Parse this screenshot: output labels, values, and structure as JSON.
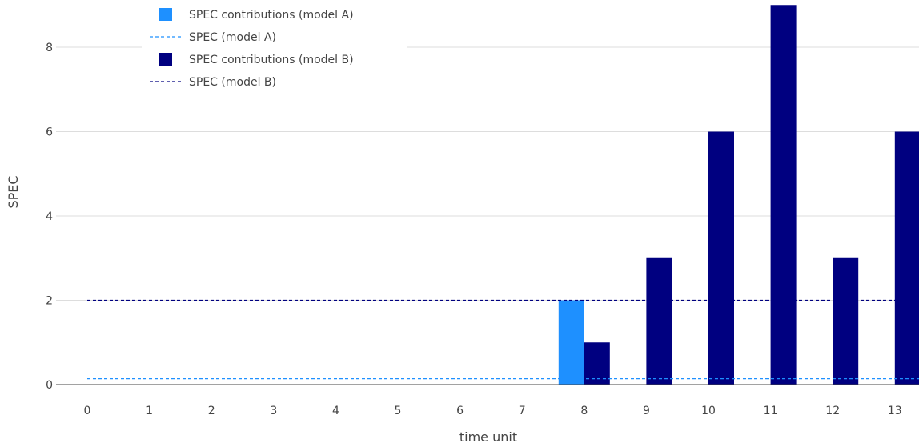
{
  "chart_data": {
    "type": "bar",
    "x": [
      0,
      1,
      2,
      3,
      4,
      5,
      6,
      7,
      8,
      9,
      10,
      11,
      12,
      13
    ],
    "xlabel": "time unit",
    "ylabel": "SPEC",
    "yticks": [
      0,
      2,
      4,
      6,
      8
    ],
    "ylim": [
      0,
      9
    ],
    "grid": true,
    "legend_position": "top-left",
    "series": [
      {
        "name": "SPEC contributions (model A)",
        "kind": "bar",
        "color": "#1e90ff",
        "values": [
          0,
          0,
          0,
          0,
          0,
          0,
          0,
          0,
          2,
          0,
          0,
          0,
          0,
          0
        ]
      },
      {
        "name": "SPEC (model A)",
        "kind": "dashed-line",
        "color": "#1e90ff",
        "value": 0.14
      },
      {
        "name": "SPEC contributions (model B)",
        "kind": "bar",
        "color": "#000080",
        "values": [
          0,
          0,
          0,
          0,
          0,
          0,
          0,
          0,
          1,
          3,
          6,
          9,
          3,
          6
        ]
      },
      {
        "name": "SPEC (model B)",
        "kind": "dashed-line",
        "color": "#000080",
        "value": 2
      }
    ]
  }
}
